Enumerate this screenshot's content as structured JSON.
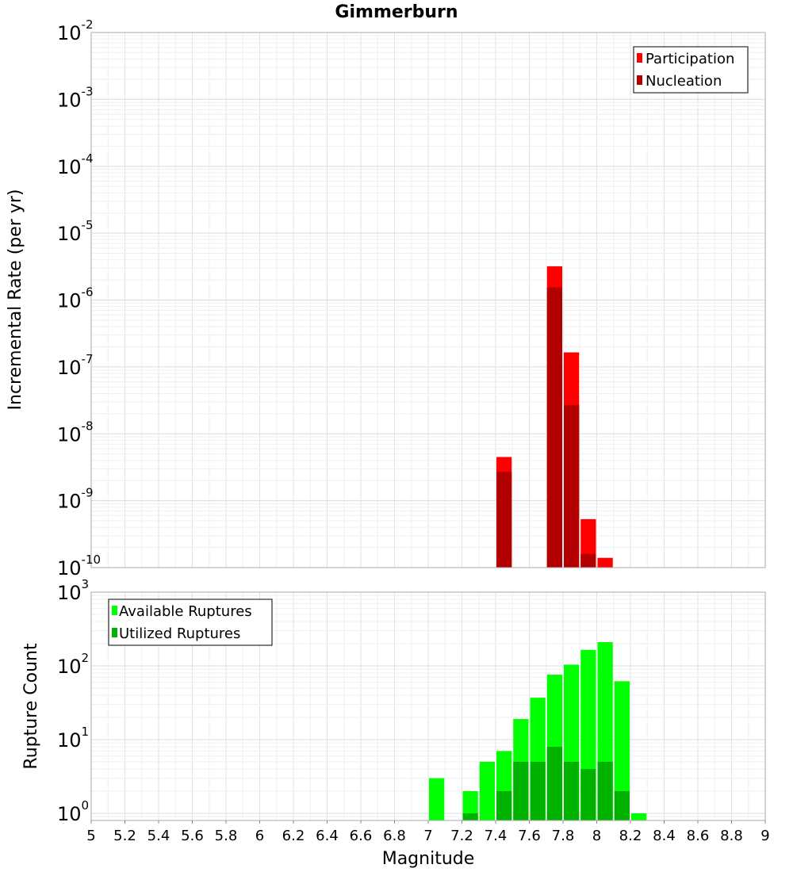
{
  "chart_data": [
    {
      "type": "bar",
      "title": "Gimmerburn",
      "ylabel": "Incremental Rate (per yr)",
      "y_scale": "log",
      "ylim": [
        1e-10,
        0.01
      ],
      "y_ticks": [
        {
          "base": "10",
          "exp": "-10"
        },
        {
          "base": "10",
          "exp": "-9"
        },
        {
          "base": "10",
          "exp": "-8"
        },
        {
          "base": "10",
          "exp": "-7"
        },
        {
          "base": "10",
          "exp": "-6"
        },
        {
          "base": "10",
          "exp": "-5"
        },
        {
          "base": "10",
          "exp": "-4"
        },
        {
          "base": "10",
          "exp": "-3"
        },
        {
          "base": "10",
          "exp": "-2"
        }
      ],
      "xlim": [
        5,
        9
      ],
      "grid": true,
      "legend_position": "top-right",
      "bin_width": 0.1,
      "series": [
        {
          "name": "Participation",
          "color": "#ff0000",
          "x": [
            7.45,
            7.75,
            7.85,
            7.95,
            8.05
          ],
          "values": [
            4.5e-09,
            3.2e-06,
            1.65e-07,
            5.3e-10,
            1.4e-10
          ]
        },
        {
          "name": "Nucleation",
          "color": "#b20000",
          "x": [
            7.45,
            7.75,
            7.85,
            7.95
          ],
          "values": [
            2.7e-09,
            1.55e-06,
            2.7e-08,
            1.6e-10
          ]
        }
      ]
    },
    {
      "type": "bar",
      "xlabel": "Magnitude",
      "ylabel": "Rupture Count",
      "y_scale": "log",
      "ylim": [
        0.8,
        1000
      ],
      "y_ticks": [
        {
          "base": "10",
          "exp": "0"
        },
        {
          "base": "10",
          "exp": "1"
        },
        {
          "base": "10",
          "exp": "2"
        },
        {
          "base": "10",
          "exp": "3"
        }
      ],
      "xlim": [
        5,
        9
      ],
      "x_ticks": [
        "5",
        "5.2",
        "5.4",
        "5.6",
        "5.8",
        "6",
        "6.2",
        "6.4",
        "6.6",
        "6.8",
        "7",
        "7.2",
        "7.4",
        "7.6",
        "7.8",
        "8",
        "8.2",
        "8.4",
        "8.6",
        "8.8",
        "9"
      ],
      "grid": true,
      "legend_position": "top-left",
      "bin_width": 0.1,
      "series": [
        {
          "name": "Available Ruptures",
          "color": "#00ff00",
          "x": [
            7.05,
            7.25,
            7.35,
            7.45,
            7.55,
            7.65,
            7.75,
            7.85,
            7.95,
            8.05,
            8.15,
            8.25
          ],
          "values": [
            3,
            2,
            5,
            7,
            19,
            37,
            76,
            104,
            165,
            210,
            62,
            1
          ]
        },
        {
          "name": "Utilized Ruptures",
          "color": "#00b200",
          "x": [
            7.25,
            7.45,
            7.55,
            7.65,
            7.75,
            7.85,
            7.95,
            8.05,
            8.15
          ],
          "values": [
            1,
            2,
            5,
            5,
            8,
            5,
            4,
            5,
            2
          ]
        }
      ]
    }
  ]
}
